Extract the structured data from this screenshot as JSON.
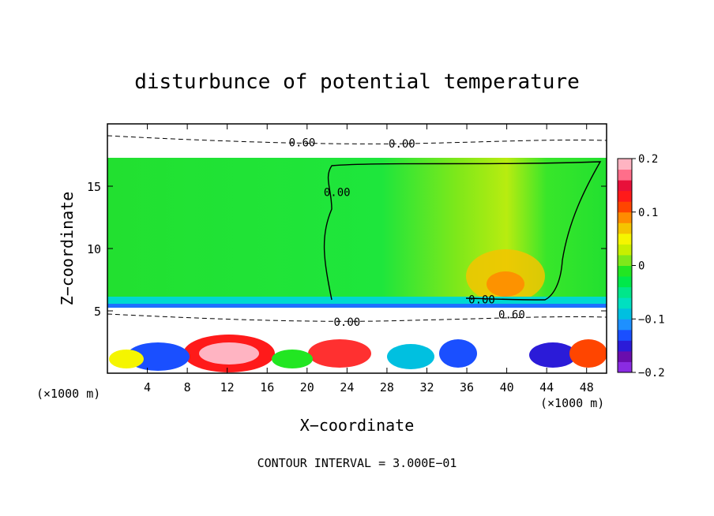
{
  "chart_data": {
    "type": "heatmap",
    "title": "disturbunce of potential temperature",
    "xlabel": "X−coordinate",
    "ylabel": "Z−coordinate",
    "x_unit_label_left": "(×1000 m)",
    "x_unit_label_right": "(×1000 m)",
    "footer": "CONTOUR INTERVAL = 3.000E−01",
    "xlim": [
      0,
      50
    ],
    "ylim": [
      0,
      20
    ],
    "x_ticks": [
      4,
      8,
      12,
      16,
      20,
      24,
      28,
      32,
      36,
      40,
      44,
      48
    ],
    "x_tick_labels": [
      "4",
      "8",
      "12",
      "16",
      "20",
      "24",
      "28",
      "32",
      "36",
      "40",
      "44",
      "48"
    ],
    "y_ticks": [
      5,
      10,
      15
    ],
    "y_tick_labels": [
      "5",
      "10",
      "15"
    ],
    "colorbar": {
      "range": [
        -0.2,
        0.2
      ],
      "ticks": [
        0.2,
        0.1,
        0,
        -0.1,
        -0.2
      ],
      "tick_labels": [
        "0.2",
        "0.1",
        "0",
        "−0.1",
        "−0.2"
      ],
      "colors": [
        "#8a2be2",
        "#6a0dad",
        "#2b1bd8",
        "#1a4fff",
        "#1e90ff",
        "#00c0e0",
        "#00e0c0",
        "#00e68a",
        "#00e84a",
        "#22e622",
        "#7fe81a",
        "#c8ef00",
        "#f5f500",
        "#f5c400",
        "#ff8c00",
        "#ff4500",
        "#ff1a1a",
        "#e8103a",
        "#ff6e8a",
        "#ffb4c2"
      ]
    },
    "contour_labels": [
      {
        "text": "0.60",
        "x": 19.5,
        "y": 18.2
      },
      {
        "text": "0.00",
        "x": 29.5,
        "y": 18.1
      },
      {
        "text": "0.00",
        "x": 23.0,
        "y": 14.2
      },
      {
        "text": "0.00",
        "x": 37.5,
        "y": 5.6
      },
      {
        "text": "0.60",
        "x": 40.5,
        "y": 4.4
      },
      {
        "text": "0.00",
        "x": 24.0,
        "y": 3.8
      }
    ]
  }
}
